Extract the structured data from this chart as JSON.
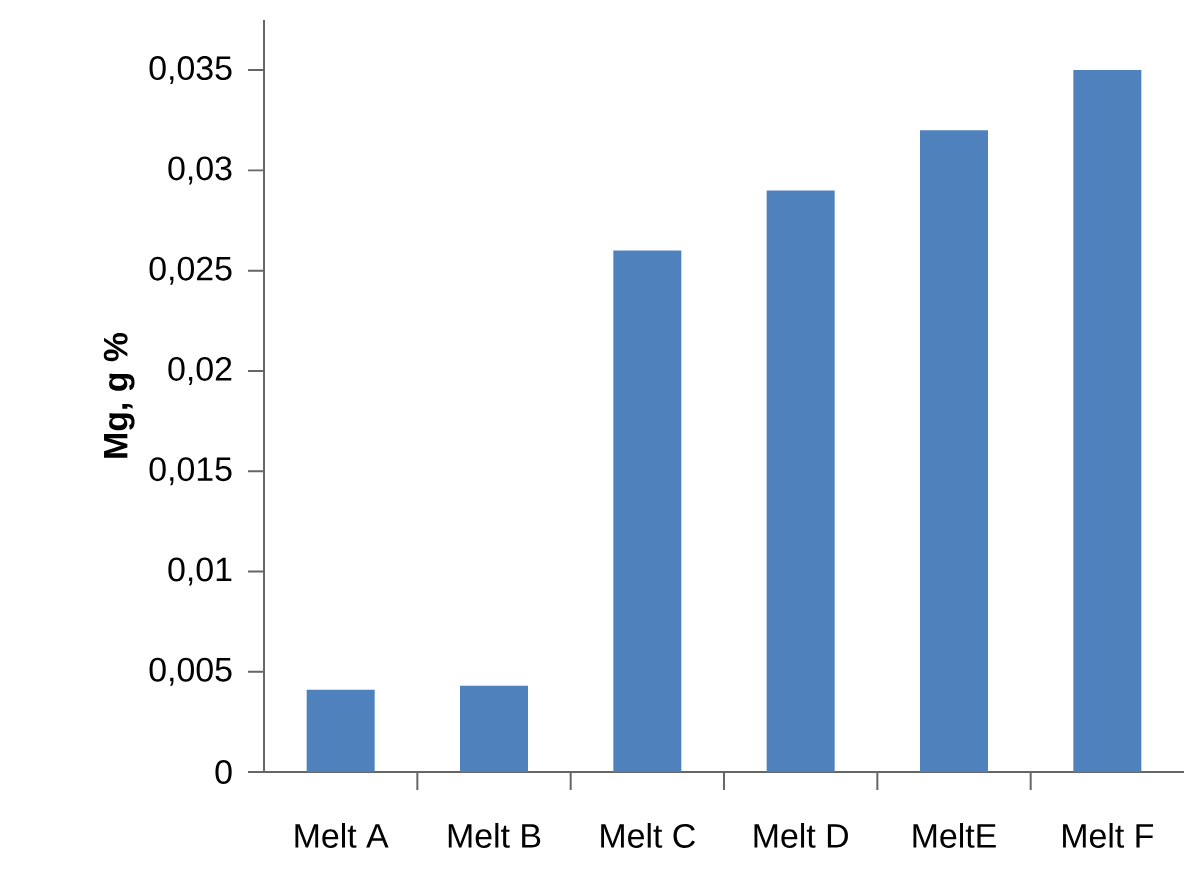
{
  "chart_data": {
    "type": "bar",
    "ylabel": "Mg, g %",
    "categories": [
      "Melt A",
      "Melt B",
      "Melt C",
      "Melt D",
      "MeltE",
      "Melt F"
    ],
    "values": [
      0.0041,
      0.0043,
      0.026,
      0.029,
      0.032,
      0.035
    ],
    "color": "#4f81bd",
    "ylim": [
      0,
      0.0375
    ],
    "yticks": [
      {
        "value": 0,
        "label": "0"
      },
      {
        "value": 0.005,
        "label": "0,005"
      },
      {
        "value": 0.01,
        "label": "0,01"
      },
      {
        "value": 0.015,
        "label": "0,015"
      },
      {
        "value": 0.02,
        "label": "0,02"
      },
      {
        "value": 0.025,
        "label": "0,025"
      },
      {
        "value": 0.03,
        "label": "0,03"
      },
      {
        "value": 0.035,
        "label": "0,035"
      }
    ],
    "grid": false
  }
}
